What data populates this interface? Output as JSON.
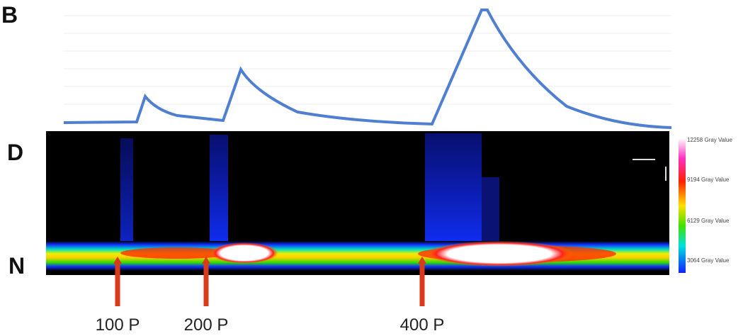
{
  "panel_label": "B",
  "row_labels": {
    "top": "D",
    "bottom": "N"
  },
  "stimuli": [
    "100 P",
    "200 P",
    "400 P"
  ],
  "colorbar_labels": [
    "12258 Gray Value",
    "9194 Gray Value",
    "6129 Gray Value",
    "3064 Gray Value"
  ]
}
